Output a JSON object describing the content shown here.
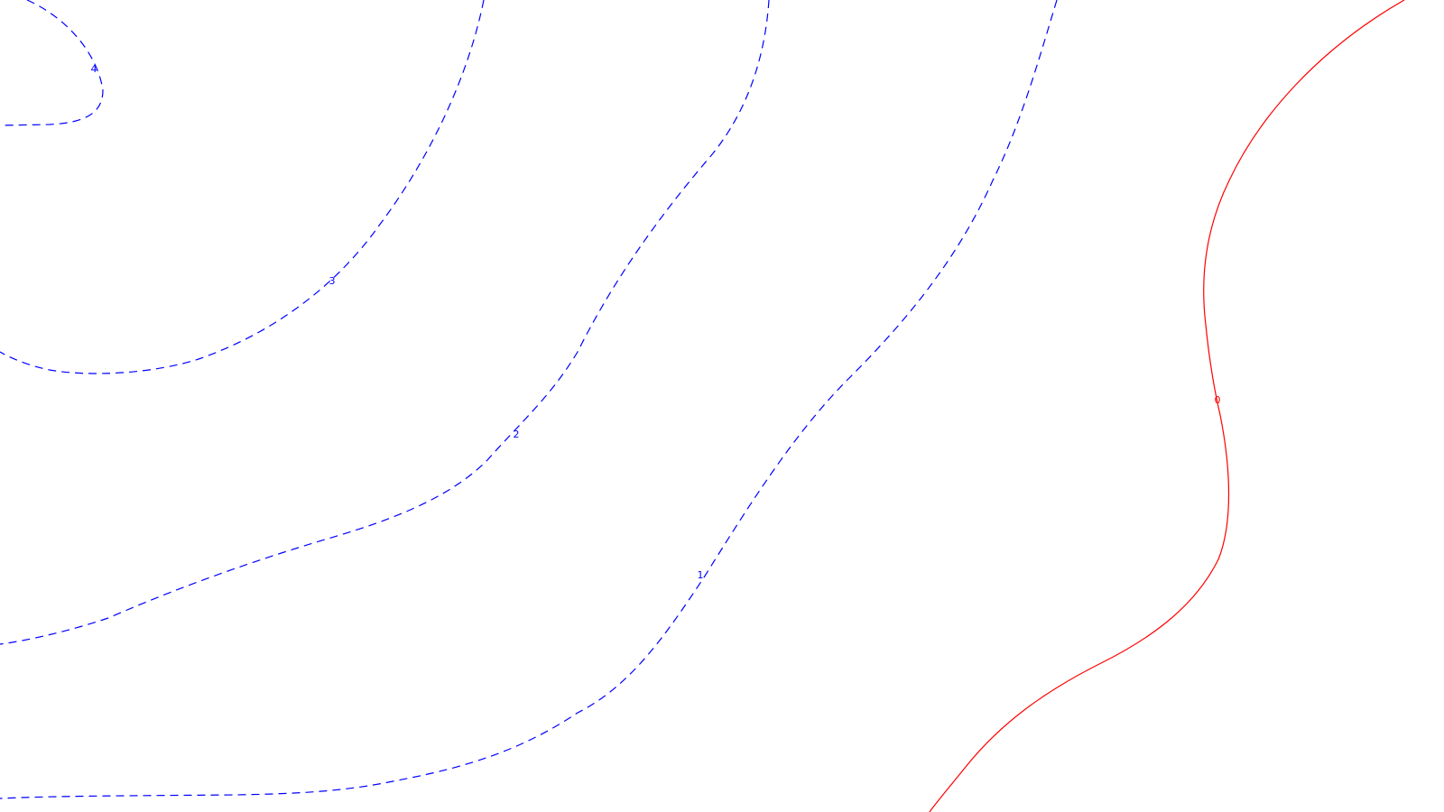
{
  "map": {
    "type": "contour",
    "styles": {
      "positive": {
        "color": "#0000ff",
        "dashed": true
      },
      "zero": {
        "color": "#ff0000",
        "dashed": false
      }
    },
    "contours": [
      {
        "level": "4",
        "style": "positive"
      },
      {
        "level": "3",
        "style": "positive"
      },
      {
        "level": "2",
        "style": "positive"
      },
      {
        "level": "1",
        "style": "positive"
      },
      {
        "level": "0",
        "style": "zero"
      }
    ]
  }
}
